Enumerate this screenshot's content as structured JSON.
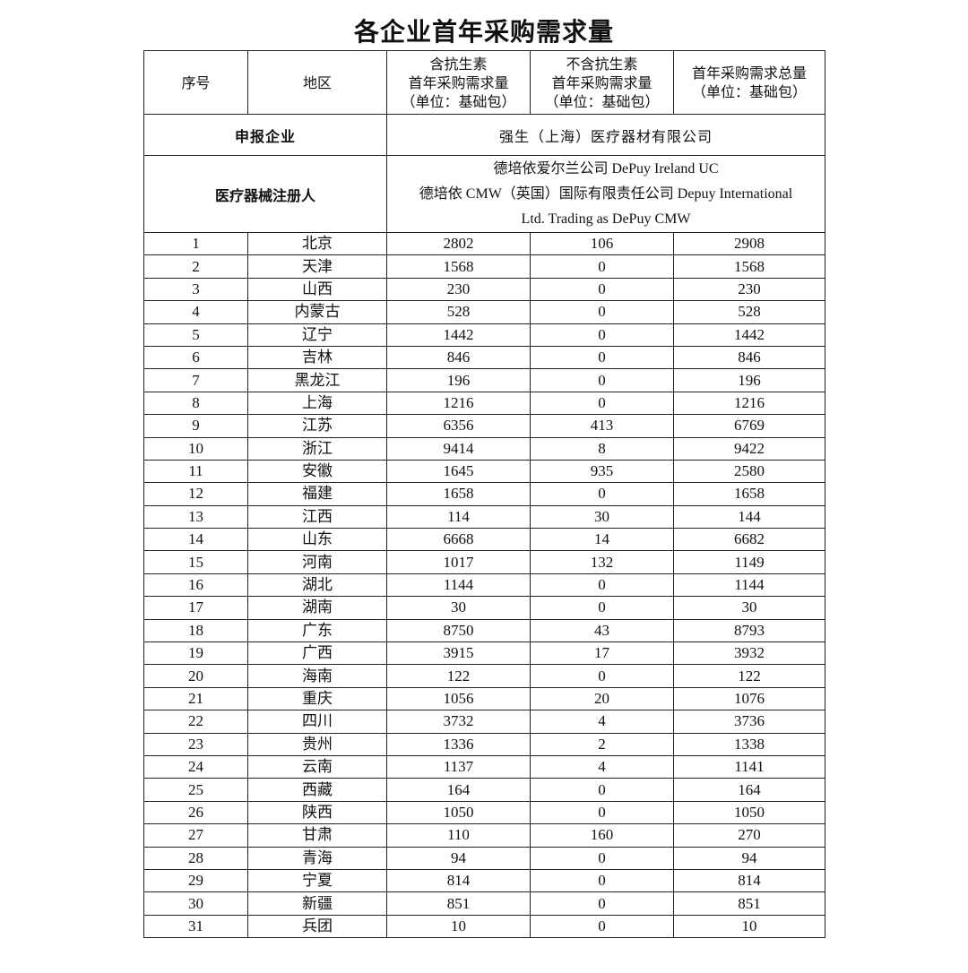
{
  "title": "各企业首年采购需求量",
  "headers": {
    "index": "序号",
    "region": "地区",
    "with_antibiotics": [
      "含抗生素",
      "首年采购需求量",
      "（单位：基础包）"
    ],
    "without_antibiotics": [
      "不含抗生素",
      "首年采购需求量",
      "（单位：基础包）"
    ],
    "total": [
      "首年采购需求总量",
      "（单位：基础包）"
    ]
  },
  "applicant": {
    "label": "申报企业",
    "value": "强生（上海）医疗器材有限公司"
  },
  "registrant": {
    "label": "医疗器械注册人",
    "lines": [
      "德培依爱尔兰公司 DePuy Ireland UC",
      "德培依 CMW（英国）国际有限责任公司 Depuy International",
      "Ltd. Trading as DePuy CMW"
    ]
  },
  "rows": [
    [
      "1",
      "北京",
      "2802",
      "106",
      "2908"
    ],
    [
      "2",
      "天津",
      "1568",
      "0",
      "1568"
    ],
    [
      "3",
      "山西",
      "230",
      "0",
      "230"
    ],
    [
      "4",
      "内蒙古",
      "528",
      "0",
      "528"
    ],
    [
      "5",
      "辽宁",
      "1442",
      "0",
      "1442"
    ],
    [
      "6",
      "吉林",
      "846",
      "0",
      "846"
    ],
    [
      "7",
      "黑龙江",
      "196",
      "0",
      "196"
    ],
    [
      "8",
      "上海",
      "1216",
      "0",
      "1216"
    ],
    [
      "9",
      "江苏",
      "6356",
      "413",
      "6769"
    ],
    [
      "10",
      "浙江",
      "9414",
      "8",
      "9422"
    ],
    [
      "11",
      "安徽",
      "1645",
      "935",
      "2580"
    ],
    [
      "12",
      "福建",
      "1658",
      "0",
      "1658"
    ],
    [
      "13",
      "江西",
      "114",
      "30",
      "144"
    ],
    [
      "14",
      "山东",
      "6668",
      "14",
      "6682"
    ],
    [
      "15",
      "河南",
      "1017",
      "132",
      "1149"
    ],
    [
      "16",
      "湖北",
      "1144",
      "0",
      "1144"
    ],
    [
      "17",
      "湖南",
      "30",
      "0",
      "30"
    ],
    [
      "18",
      "广东",
      "8750",
      "43",
      "8793"
    ],
    [
      "19",
      "广西",
      "3915",
      "17",
      "3932"
    ],
    [
      "20",
      "海南",
      "122",
      "0",
      "122"
    ],
    [
      "21",
      "重庆",
      "1056",
      "20",
      "1076"
    ],
    [
      "22",
      "四川",
      "3732",
      "4",
      "3736"
    ],
    [
      "23",
      "贵州",
      "1336",
      "2",
      "1338"
    ],
    [
      "24",
      "云南",
      "1137",
      "4",
      "1141"
    ],
    [
      "25",
      "西藏",
      "164",
      "0",
      "164"
    ],
    [
      "26",
      "陕西",
      "1050",
      "0",
      "1050"
    ],
    [
      "27",
      "甘肃",
      "110",
      "160",
      "270"
    ],
    [
      "28",
      "青海",
      "94",
      "0",
      "94"
    ],
    [
      "29",
      "宁夏",
      "814",
      "0",
      "814"
    ],
    [
      "30",
      "新疆",
      "851",
      "0",
      "851"
    ],
    [
      "31",
      "兵团",
      "10",
      "0",
      "10"
    ]
  ]
}
